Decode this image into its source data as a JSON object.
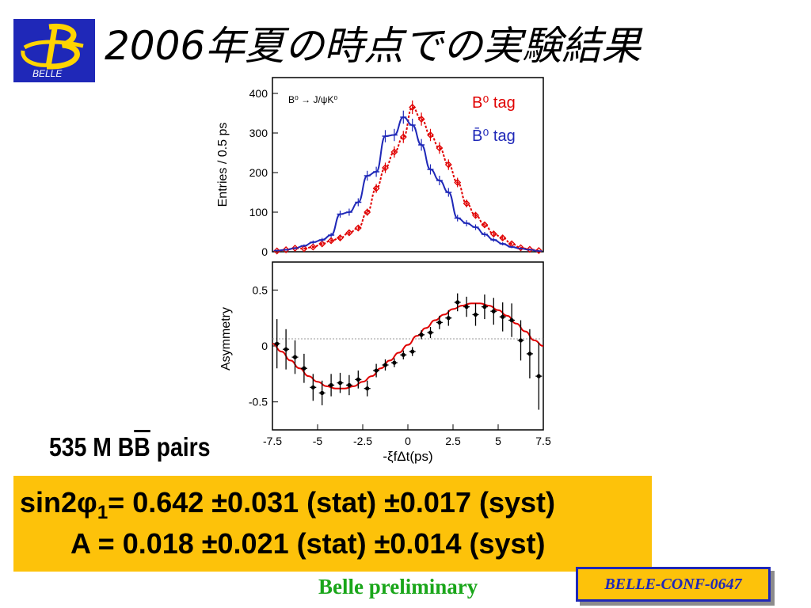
{
  "logo": {
    "text": "BELLE"
  },
  "title": "2006年夏の時点での実験結果",
  "pairs_label": {
    "prefix": "535 M B",
    "bbar": "B",
    "suffix": " pairs"
  },
  "result": {
    "line1_prefix": "sin2",
    "line1_phi": "φ",
    "line1_sub": "1",
    "line1_rest": "= 0.642 ±0.031 (stat) ±0.017 (syst)",
    "line2": "A =  0.018 ±0.021 (stat) ±0.014 (syst)"
  },
  "preliminary": "Belle preliminary",
  "conf": "BELLE-CONF-0647",
  "colors": {
    "blue": "#1f28b8",
    "red": "#e00000",
    "yellow": "#fdc20a",
    "green": "#1aa61a"
  },
  "chart_data": [
    {
      "type": "line",
      "annotation": "B⁰ → J/ψK⁰",
      "ylabel": "Entries / 0.5 ps",
      "ylim": [
        0,
        400
      ],
      "yticks": [
        0,
        100,
        200,
        300,
        400
      ],
      "xlim": [
        -7.5,
        7.5
      ],
      "legend_position": "top-right",
      "series": [
        {
          "name": "B⁰ tag",
          "color": "#e00000",
          "x": [
            -7.25,
            -6.75,
            -6.25,
            -5.75,
            -5.25,
            -4.75,
            -4.25,
            -3.75,
            -3.25,
            -2.75,
            -2.25,
            -1.75,
            -1.25,
            -0.75,
            -0.25,
            0.25,
            0.75,
            1.25,
            1.75,
            2.25,
            2.75,
            3.25,
            3.75,
            4.25,
            4.75,
            5.25,
            5.75,
            6.25,
            6.75,
            7.25
          ],
          "y": [
            2,
            5,
            9,
            8,
            12,
            20,
            28,
            35,
            48,
            60,
            100,
            160,
            212,
            252,
            290,
            365,
            335,
            295,
            262,
            220,
            175,
            122,
            92,
            68,
            45,
            35,
            20,
            10,
            6,
            3
          ]
        },
        {
          "name": "B̄⁰ tag",
          "color": "#1f28b8",
          "x": [
            -7.25,
            -6.75,
            -6.25,
            -5.75,
            -5.25,
            -4.75,
            -4.25,
            -3.75,
            -3.25,
            -2.75,
            -2.25,
            -1.75,
            -1.25,
            -0.75,
            -0.25,
            0.25,
            0.75,
            1.25,
            1.75,
            2.25,
            2.75,
            3.25,
            3.75,
            4.25,
            4.75,
            5.25,
            5.75,
            6.25,
            6.75,
            7.25
          ],
          "y": [
            3,
            5,
            9,
            15,
            24,
            30,
            42,
            95,
            100,
            125,
            192,
            202,
            292,
            295,
            340,
            320,
            270,
            208,
            180,
            150,
            85,
            72,
            62,
            44,
            30,
            20,
            12,
            8,
            5,
            2
          ]
        }
      ]
    },
    {
      "type": "scatter",
      "xlabel": "-ξfΔt(ps)",
      "ylabel": "Asymmetry",
      "ylim": [
        -0.75,
        0.75
      ],
      "yticks": [
        -0.5,
        0,
        0.5
      ],
      "xlim": [
        -7.5,
        7.5
      ],
      "xticks": [
        -7.5,
        -5,
        -2.5,
        0,
        2.5,
        5,
        7.5
      ],
      "x": [
        -7.25,
        -6.75,
        -6.25,
        -5.75,
        -5.25,
        -4.75,
        -4.25,
        -3.75,
        -3.25,
        -2.75,
        -2.25,
        -1.75,
        -1.25,
        -0.75,
        -0.25,
        0.25,
        0.75,
        1.25,
        1.75,
        2.25,
        2.75,
        3.25,
        3.75,
        4.25,
        4.75,
        5.25,
        5.75,
        6.25,
        6.75,
        7.25
      ],
      "y": [
        0.02,
        -0.03,
        -0.1,
        -0.2,
        -0.37,
        -0.42,
        -0.35,
        -0.33,
        -0.35,
        -0.3,
        -0.38,
        -0.22,
        -0.17,
        -0.15,
        -0.08,
        -0.05,
        0.1,
        0.12,
        0.21,
        0.25,
        0.39,
        0.35,
        0.28,
        0.35,
        0.31,
        0.26,
        0.23,
        0.05,
        -0.07,
        -0.27
      ],
      "yerr": [
        0.22,
        0.18,
        0.15,
        0.13,
        0.12,
        0.11,
        0.1,
        0.09,
        0.09,
        0.08,
        0.07,
        0.06,
        0.05,
        0.04,
        0.04,
        0.04,
        0.04,
        0.05,
        0.06,
        0.07,
        0.08,
        0.09,
        0.1,
        0.11,
        0.12,
        0.13,
        0.15,
        0.18,
        0.22,
        0.3
      ],
      "fit": {
        "x": [
          -7.5,
          -7,
          -6.5,
          -6,
          -5.5,
          -5,
          -4.5,
          -4,
          -3.5,
          -3,
          -2.5,
          -2,
          -1.5,
          -1,
          -0.5,
          0,
          0.5,
          1,
          1.5,
          2,
          2.5,
          3,
          3.5,
          4,
          4.5,
          5,
          5.5,
          6,
          6.5,
          7,
          7.5
        ],
        "y": [
          0.02,
          -0.05,
          -0.13,
          -0.2,
          -0.27,
          -0.32,
          -0.36,
          -0.38,
          -0.38,
          -0.36,
          -0.32,
          -0.27,
          -0.2,
          -0.13,
          -0.06,
          0.01,
          0.09,
          0.16,
          0.23,
          0.28,
          0.33,
          0.36,
          0.38,
          0.38,
          0.36,
          0.32,
          0.27,
          0.2,
          0.13,
          0.05,
          0.0
        ]
      }
    }
  ]
}
